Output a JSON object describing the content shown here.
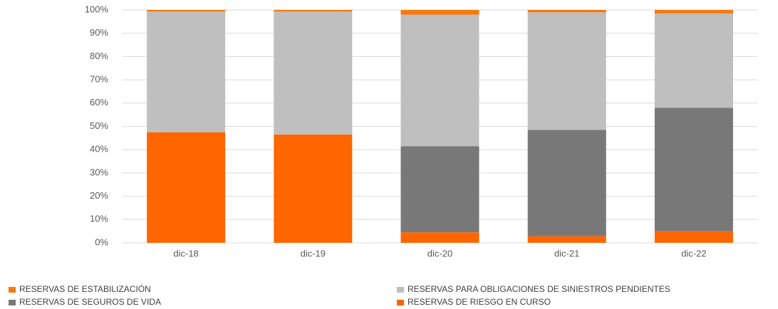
{
  "chart_data": {
    "type": "stacked_bar",
    "categories": [
      "dic-18",
      "dic-19",
      "dic-20",
      "dic-21",
      "dic-22"
    ],
    "series": [
      {
        "name": "RESERVAS DE RIESGO EN CURSO",
        "color": "#ff6600",
        "values": [
          47.5,
          46.5,
          4.5,
          2.8,
          5
        ]
      },
      {
        "name": "RESERVAS DE SEGUROS DE VIDA",
        "color": "#787878",
        "values": [
          0,
          0,
          37,
          45.7,
          53
        ]
      },
      {
        "name": "RESERVAS PARA OBLIGACIONES DE SINIESTROS PENDIENTES",
        "color": "#bfbfbf",
        "values": [
          51.8,
          52.8,
          56.5,
          50.5,
          40.5
        ]
      },
      {
        "name": "RESERVAS DE ESTABILIZACIÓN",
        "color": "#f7780c",
        "values": [
          0.7,
          0.7,
          2,
          1,
          1.5
        ]
      }
    ],
    "ylim": [
      0,
      100
    ],
    "yticks": [
      {
        "value": 0,
        "label": "0%"
      },
      {
        "value": 10,
        "label": "10%"
      },
      {
        "value": 20,
        "label": "20%"
      },
      {
        "value": 30,
        "label": "30%"
      },
      {
        "value": 40,
        "label": "40%"
      },
      {
        "value": 50,
        "label": "50%"
      },
      {
        "value": 60,
        "label": "60%"
      },
      {
        "value": 70,
        "label": "70%"
      },
      {
        "value": 80,
        "label": "80%"
      },
      {
        "value": 90,
        "label": "90%"
      },
      {
        "value": 100,
        "label": "100%"
      }
    ],
    "grid": true,
    "legend": "bottom"
  }
}
